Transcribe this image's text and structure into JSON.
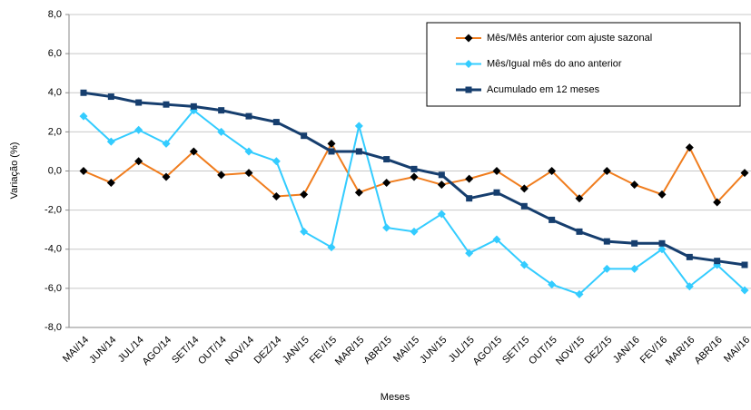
{
  "chart_data": {
    "type": "line",
    "x_label": "Meses",
    "y_label": "Variação (%)",
    "categories": [
      "MAI/14",
      "JUN/14",
      "JUL/14",
      "AGO/14",
      "SET/14",
      "OUT/14",
      "NOV/14",
      "DEZ/14",
      "JAN/15",
      "FEV/15",
      "MAR/15",
      "ABR/15",
      "MAI/15",
      "JUN/15",
      "JUL/15",
      "AGO/15",
      "SET/15",
      "OUT/15",
      "NOV/15",
      "DEZ/15",
      "JAN/16",
      "FEV/16",
      "MAR/16",
      "ABR/16",
      "MAI/16"
    ],
    "series": [
      {
        "name": "Mês/Mês anterior com ajuste sazonal",
        "color": "#f07d1e",
        "marker": "diamond",
        "marker_color": "#000000",
        "values": [
          0.0,
          -0.6,
          0.5,
          -0.3,
          1.0,
          -0.2,
          -0.1,
          -1.3,
          -1.2,
          1.4,
          -1.1,
          -0.6,
          -0.3,
          -0.7,
          -0.4,
          0.0,
          -0.9,
          0.0,
          -1.4,
          0.0,
          -0.7,
          -1.2,
          1.2,
          -1.6,
          -0.1
        ]
      },
      {
        "name": "Mês/Igual mês do ano anterior",
        "color": "#33ccff",
        "marker": "diamond",
        "marker_color": "#33ccff",
        "values": [
          2.8,
          1.5,
          2.1,
          1.4,
          3.1,
          2.0,
          1.0,
          0.5,
          -3.1,
          -3.9,
          2.3,
          -2.9,
          -3.1,
          -2.2,
          -4.2,
          -3.5,
          -4.8,
          -5.8,
          -6.3,
          -5.0,
          -5.0,
          -4.0,
          -5.9,
          -4.8,
          -6.1
        ]
      },
      {
        "name": "Acumulado em 12 meses",
        "color": "#163e6e",
        "marker": "square",
        "marker_color": "#163e6e",
        "values": [
          4.0,
          3.8,
          3.5,
          3.4,
          3.3,
          3.1,
          2.8,
          2.5,
          1.8,
          1.0,
          1.0,
          0.6,
          0.1,
          -0.2,
          -1.4,
          -1.1,
          -1.8,
          -2.5,
          -3.1,
          -3.6,
          -3.7,
          -3.7,
          -4.4,
          -4.6,
          -4.8
        ]
      }
    ],
    "ylim": [
      -8,
      8
    ],
    "yticks": [
      {
        "value": -8,
        "label": "-8,0"
      },
      {
        "value": -6,
        "label": "-6,0"
      },
      {
        "value": -4,
        "label": "-4,0"
      },
      {
        "value": -2,
        "label": "-2,0"
      },
      {
        "value": 0,
        "label": "0,0"
      },
      {
        "value": 2,
        "label": "2,0"
      },
      {
        "value": 4,
        "label": "4,0"
      },
      {
        "value": 6,
        "label": "6,0"
      },
      {
        "value": 8,
        "label": "8,0"
      }
    ],
    "grid": true,
    "legend": "upper right"
  }
}
